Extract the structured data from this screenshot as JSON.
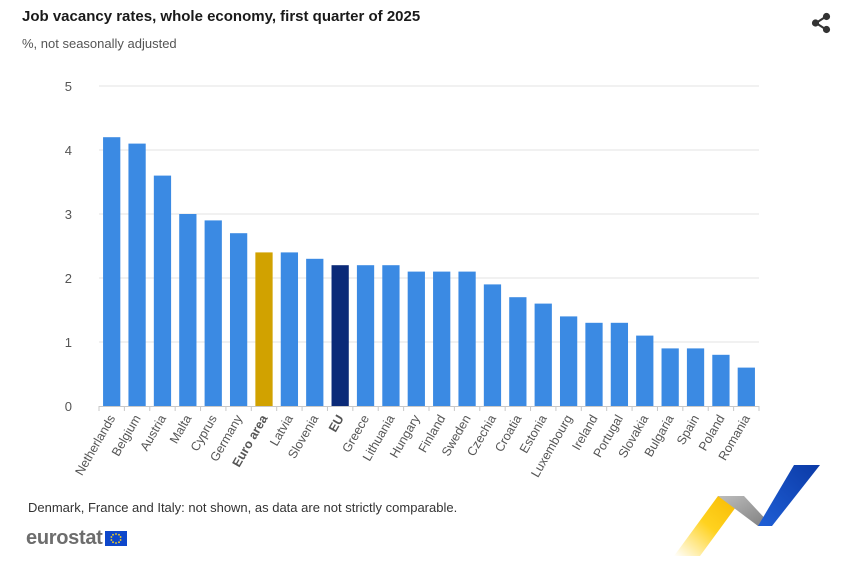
{
  "header": {
    "title": "Job vacancy rates, whole economy, first quarter of 2025",
    "subtitle": "%, not seasonally adjusted",
    "share_icon": "share-icon"
  },
  "footer": {
    "footnote": "Denmark, France and Italy: not shown, as data are not strictly comparable.",
    "logo_text": "eurostat",
    "logo_icon": "eu-flag-icon"
  },
  "colors": {
    "default": "#3b8ae3",
    "euro_area": "#d1a200",
    "eu": "#0b2a78",
    "grid": "#e3e3e3",
    "axis": "#c8c8c8",
    "label": "#555555"
  },
  "chart_data": {
    "type": "bar",
    "title": "Job vacancy rates, whole economy, first quarter of 2025",
    "subtitle": "%, not seasonally adjusted",
    "categories": [
      "Netherlands",
      "Belgium",
      "Austria",
      "Malta",
      "Cyprus",
      "Germany",
      "Euro area",
      "Latvia",
      "Slovenia",
      "EU",
      "Greece",
      "Lithuania",
      "Hungary",
      "Finland",
      "Sweden",
      "Czechia",
      "Croatia",
      "Estonia",
      "Luxembourg",
      "Ireland",
      "Portugal",
      "Slovakia",
      "Bulgaria",
      "Spain",
      "Poland",
      "Romania"
    ],
    "values": [
      4.2,
      4.1,
      3.6,
      3.0,
      2.9,
      2.7,
      2.4,
      2.4,
      2.3,
      2.2,
      2.2,
      2.2,
      2.1,
      2.1,
      2.1,
      1.9,
      1.7,
      1.6,
      1.4,
      1.3,
      1.3,
      1.1,
      0.9,
      0.9,
      0.8,
      0.6
    ],
    "highlight": {
      "Euro area": "euro_area",
      "EU": "eu"
    },
    "bold_labels": [
      "Euro area",
      "EU"
    ],
    "ylim": [
      0,
      5
    ],
    "yticks": [
      0,
      1,
      2,
      3,
      4,
      5
    ],
    "grid": true,
    "xlabel": "",
    "ylabel": ""
  }
}
